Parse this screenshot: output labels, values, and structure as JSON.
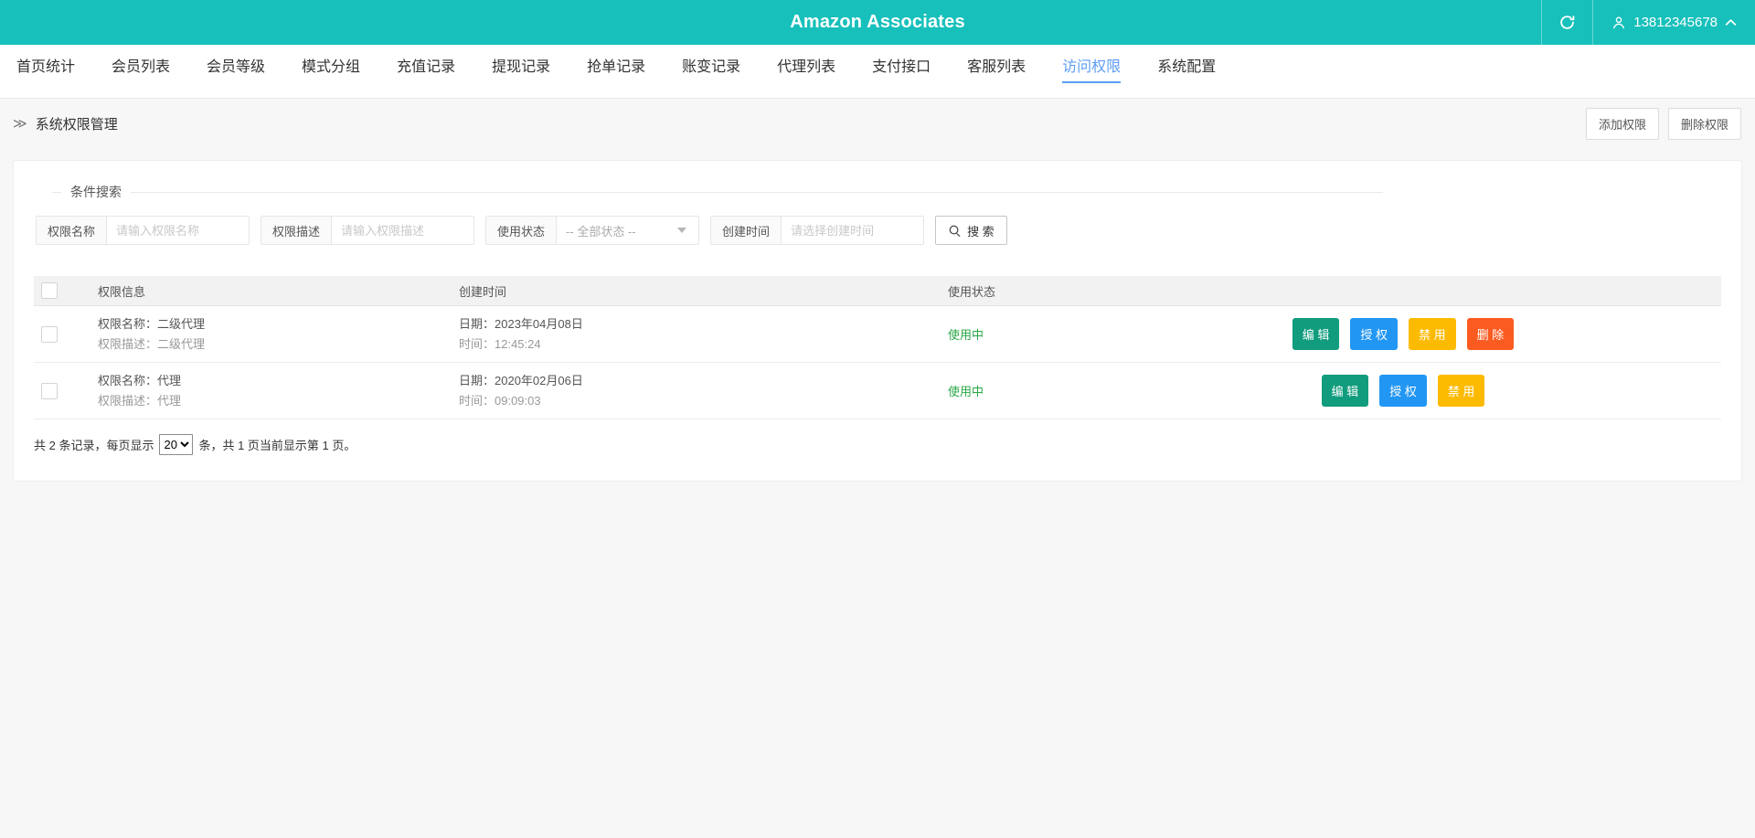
{
  "colors": {
    "header_bg": "#17c0bb",
    "nav_active": "#5d9df6",
    "status_active": "#28a745",
    "btn_edit": "#119c7d",
    "btn_authorize": "#2196f3",
    "btn_disable": "#fcba00",
    "btn_delete": "#fb5b21"
  },
  "icons": {
    "refresh": "circular-arrow-refresh",
    "user": "person-silhouette",
    "collapse": "chevron-up",
    "breadcrumb": "double-angle-right",
    "search": "magnifier",
    "select_arrow": "triangle-down"
  },
  "header": {
    "title": "Amazon Associates",
    "user_phone": "13812345678"
  },
  "nav": {
    "items": [
      {
        "label": "首页统计",
        "active": false
      },
      {
        "label": "会员列表",
        "active": false
      },
      {
        "label": "会员等级",
        "active": false
      },
      {
        "label": "模式分组",
        "active": false
      },
      {
        "label": "充值记录",
        "active": false
      },
      {
        "label": "提现记录",
        "active": false
      },
      {
        "label": "抢单记录",
        "active": false
      },
      {
        "label": "账变记录",
        "active": false
      },
      {
        "label": "代理列表",
        "active": false
      },
      {
        "label": "支付接口",
        "active": false
      },
      {
        "label": "客服列表",
        "active": false
      },
      {
        "label": "访问权限",
        "active": true
      },
      {
        "label": "系统配置",
        "active": false
      }
    ]
  },
  "toolbar": {
    "breadcrumb": "系统权限管理",
    "add_button": "添加权限",
    "delete_button": "删除权限"
  },
  "search": {
    "legend": "条件搜索",
    "fields": [
      {
        "label": "权限名称",
        "placeholder": "请输入权限名称"
      },
      {
        "label": "权限描述",
        "placeholder": "请输入权限描述"
      },
      {
        "label": "使用状态",
        "value": "-- 全部状态 --"
      },
      {
        "label": "创建时间",
        "placeholder": "请选择创建时间"
      }
    ],
    "button_label": "搜 索"
  },
  "table": {
    "headers": {
      "info": "权限信息",
      "created": "创建时间",
      "status": "使用状态"
    },
    "rows": [
      {
        "info_line1": "权限名称：二级代理",
        "info_line2": "权限描述：二级代理",
        "date_line1": "日期：2023年04月08日",
        "date_line2": "时间：12:45:24",
        "status": "使用中",
        "actions": [
          {
            "name": "edit",
            "label": "编 辑"
          },
          {
            "name": "authorize",
            "label": "授 权"
          },
          {
            "name": "disable",
            "label": "禁 用"
          },
          {
            "name": "delete",
            "label": "删 除"
          }
        ]
      },
      {
        "info_line1": "权限名称：代理",
        "info_line2": "权限描述：代理",
        "date_line1": "日期：2020年02月06日",
        "date_line2": "时间：09:09:03",
        "status": "使用中",
        "actions": [
          {
            "name": "edit",
            "label": "编 辑"
          },
          {
            "name": "authorize",
            "label": "授 权"
          },
          {
            "name": "disable",
            "label": "禁 用"
          }
        ]
      }
    ]
  },
  "pagination": {
    "prefix": "共 2 条记录，每页显示",
    "page_size": "20",
    "suffix": "条，共 1 页当前显示第 1 页。",
    "total_records": 2,
    "total_pages": 1,
    "current_page": 1
  }
}
